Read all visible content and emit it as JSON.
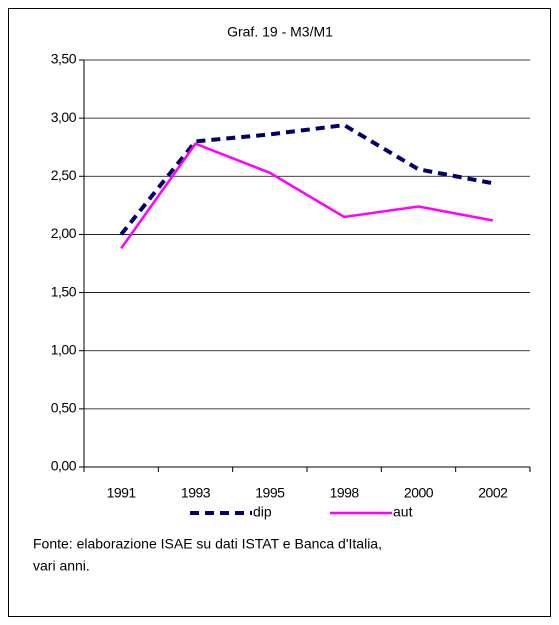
{
  "chart_data": {
    "type": "line",
    "title": "Graf. 19 - M3/M1",
    "categories": [
      "1991",
      "1993",
      "1995",
      "1998",
      "2000",
      "2002"
    ],
    "series": [
      {
        "name": "dip",
        "color": "#000066",
        "line_style": "dashed",
        "values": [
          2.0,
          2.8,
          2.86,
          2.94,
          2.56,
          2.44
        ]
      },
      {
        "name": "aut",
        "color": "#ff00ff",
        "line_style": "solid",
        "values": [
          1.88,
          2.78,
          2.53,
          2.15,
          2.24,
          2.12
        ]
      }
    ],
    "ylim": [
      0,
      3.5
    ],
    "yticks": [
      {
        "value": 0,
        "label": "0,00"
      },
      {
        "value": 0.5,
        "label": "0,50"
      },
      {
        "value": 1,
        "label": "1,00"
      },
      {
        "value": 1.5,
        "label": "1,50"
      },
      {
        "value": 2,
        "label": "2,00"
      },
      {
        "value": 2.5,
        "label": "2,50"
      },
      {
        "value": 3,
        "label": "3,00"
      },
      {
        "value": 3.5,
        "label": "3,50"
      }
    ],
    "grid": true,
    "legend": "bottom",
    "note": [
      "Fonte: elaborazione ISAE su dati ISTAT e Banca d'Italia,",
      "vari anni."
    ]
  }
}
